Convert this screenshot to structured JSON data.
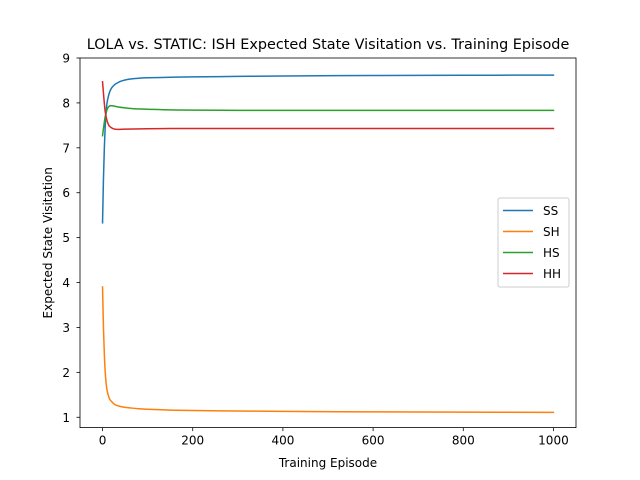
{
  "chart_data": {
    "type": "line",
    "title": "LOLA vs. STATIC: ISH Expected State Visitation vs. Training Episode",
    "xlabel": "Training Episode",
    "ylabel": "Expected State Visitation",
    "xlim": [
      -50,
      1050
    ],
    "ylim": [
      0.77,
      9.0
    ],
    "xticks": [
      0,
      200,
      400,
      600,
      800,
      1000
    ],
    "xtick_labels": [
      "0",
      "200",
      "400",
      "600",
      "800",
      "1000"
    ],
    "yticks": [
      1,
      2,
      3,
      4,
      5,
      6,
      7,
      8,
      9
    ],
    "ytick_labels": [
      "1",
      "2",
      "3",
      "4",
      "5",
      "6",
      "7",
      "8",
      "9"
    ],
    "grid": false,
    "legend": {
      "position": "center-right"
    },
    "series": [
      {
        "name": "SS",
        "color": "#1f77b4",
        "x": [
          0,
          2,
          4,
          6,
          8,
          10,
          13,
          16,
          20,
          25,
          30,
          40,
          50,
          60,
          80,
          100,
          150,
          200,
          300,
          400,
          600,
          800,
          1000
        ],
        "y": [
          5.33,
          6.3,
          7.0,
          7.5,
          7.8,
          8.0,
          8.15,
          8.25,
          8.33,
          8.39,
          8.43,
          8.48,
          8.51,
          8.53,
          8.55,
          8.56,
          8.57,
          8.58,
          8.59,
          8.6,
          8.61,
          8.615,
          8.62
        ]
      },
      {
        "name": "SH",
        "color": "#ff7f0e",
        "x": [
          0,
          2,
          4,
          6,
          8,
          10,
          13,
          16,
          20,
          25,
          30,
          40,
          50,
          60,
          80,
          100,
          150,
          200,
          300,
          400,
          600,
          800,
          1000
        ],
        "y": [
          3.9,
          3.0,
          2.4,
          2.0,
          1.75,
          1.6,
          1.48,
          1.4,
          1.35,
          1.3,
          1.27,
          1.24,
          1.22,
          1.21,
          1.19,
          1.18,
          1.16,
          1.15,
          1.14,
          1.13,
          1.12,
          1.115,
          1.11
        ]
      },
      {
        "name": "HS",
        "color": "#2ca02c",
        "x": [
          0,
          3,
          6,
          10,
          14,
          18,
          25,
          35,
          50,
          70,
          100,
          150,
          200,
          300,
          400,
          600,
          800,
          1000
        ],
        "y": [
          7.27,
          7.5,
          7.7,
          7.85,
          7.92,
          7.94,
          7.93,
          7.91,
          7.89,
          7.87,
          7.86,
          7.845,
          7.84,
          7.835,
          7.835,
          7.835,
          7.835,
          7.835
        ]
      },
      {
        "name": "HH",
        "color": "#d62728",
        "x": [
          0,
          3,
          6,
          10,
          14,
          18,
          25,
          35,
          50,
          70,
          100,
          150,
          200,
          300,
          400,
          600,
          800,
          1000
        ],
        "y": [
          8.47,
          8.1,
          7.8,
          7.6,
          7.5,
          7.46,
          7.42,
          7.41,
          7.415,
          7.42,
          7.425,
          7.43,
          7.43,
          7.43,
          7.43,
          7.43,
          7.43,
          7.43
        ]
      }
    ]
  }
}
